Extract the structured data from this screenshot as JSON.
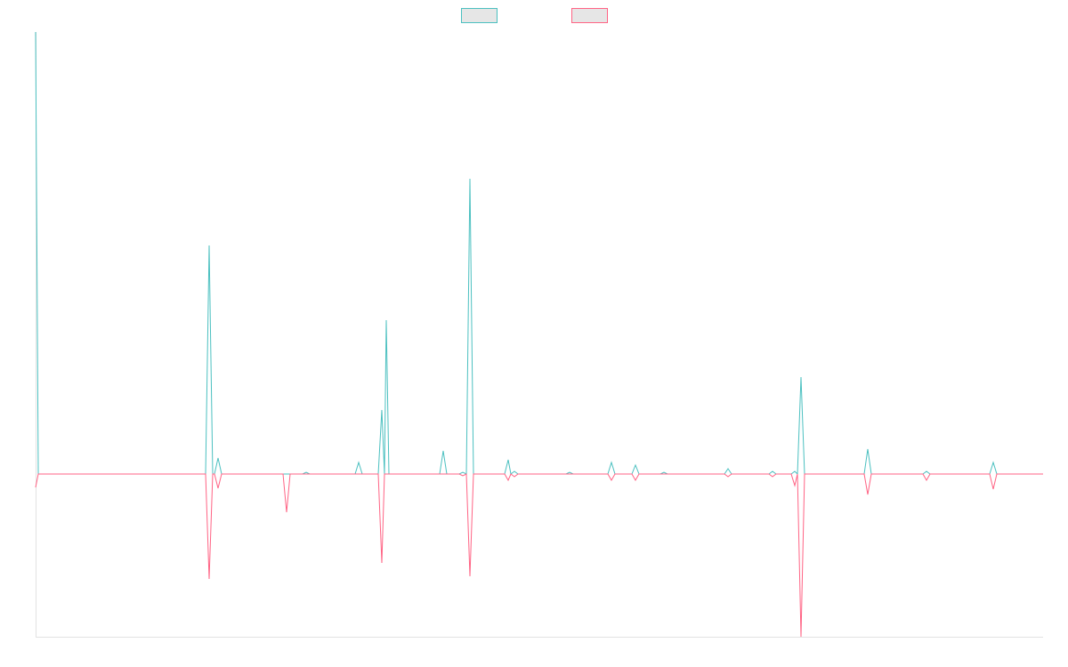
{
  "chart_data": {
    "type": "line",
    "x": [
      0,
      3,
      191,
      195,
      199,
      201,
      205,
      209,
      278,
      282,
      286,
      300,
      304,
      308,
      359,
      363,
      367,
      385,
      389,
      392,
      394,
      397,
      454,
      458,
      462,
      476,
      480,
      484,
      488,
      492,
      527,
      531,
      534,
      538,
      542,
      596,
      600,
      604,
      643,
      647,
      651,
      670,
      674,
      678,
      702,
      706,
      710,
      774,
      778,
      782,
      824,
      828,
      832,
      849,
      853,
      856,
      860,
      864,
      931,
      935,
      939,
      997,
      1001,
      1005,
      1072,
      1076,
      1080,
      1132
    ],
    "xlim": [
      0,
      1132
    ],
    "ylim": [
      -18.3,
      49.7
    ],
    "series": [
      {
        "color": "#4bc0c0",
        "values": [
          49.7,
          0,
          0,
          25.7,
          0,
          0,
          1.8,
          0,
          0,
          0,
          0,
          0,
          0.2,
          0,
          0,
          1.3,
          0,
          0,
          7.2,
          0,
          17.3,
          0,
          0,
          2.6,
          0,
          0,
          0.2,
          0,
          33.2,
          0,
          0,
          1.6,
          0,
          0.3,
          0,
          0,
          0.2,
          0,
          0,
          1.3,
          0,
          0,
          1,
          0,
          0,
          0.2,
          0,
          0,
          0.6,
          0,
          0,
          0.3,
          0,
          0,
          0.3,
          0,
          10.9,
          0,
          0,
          2.8,
          0,
          0,
          0.3,
          0,
          0,
          1.3,
          0,
          0
        ]
      },
      {
        "color": "#ff6384",
        "values": [
          -1.5,
          0,
          0,
          -11.8,
          0,
          0,
          -1.6,
          0,
          0,
          -4.3,
          0,
          0,
          0,
          0,
          0,
          0,
          0,
          0,
          -10,
          0,
          0,
          0,
          0,
          0,
          0,
          0,
          -0.2,
          0,
          -11.5,
          0,
          0,
          -0.7,
          0,
          -0.3,
          0,
          0,
          0,
          0,
          0,
          -0.7,
          0,
          0,
          -0.7,
          0,
          0,
          0,
          0,
          0,
          -0.3,
          0,
          0,
          -0.3,
          0,
          0,
          -1.3,
          0,
          -18.3,
          0,
          0,
          -2.3,
          0,
          0,
          -0.7,
          0,
          0,
          -1.7,
          0,
          0
        ]
      }
    ]
  }
}
